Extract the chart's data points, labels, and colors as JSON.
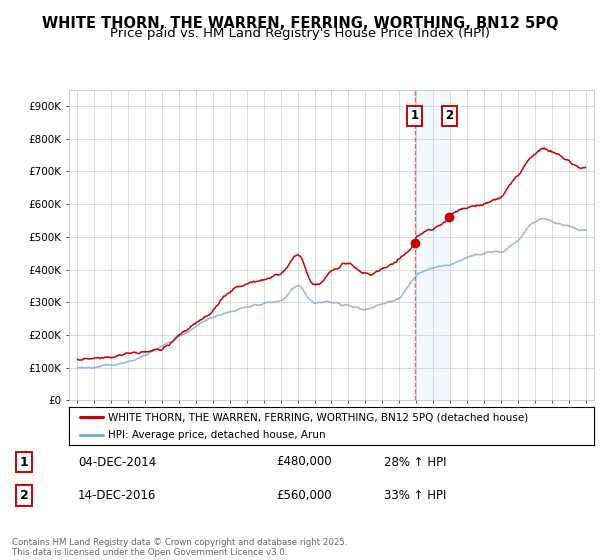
{
  "title": "WHITE THORN, THE WARREN, FERRING, WORTHING, BN12 5PQ",
  "subtitle": "Price paid vs. HM Land Registry's House Price Index (HPI)",
  "title_fontsize": 10.5,
  "subtitle_fontsize": 9.5,
  "ylim": [
    0,
    950000
  ],
  "yticks": [
    0,
    100000,
    200000,
    300000,
    400000,
    500000,
    600000,
    700000,
    800000,
    900000
  ],
  "ytick_labels": [
    "£0",
    "£100K",
    "£200K",
    "£300K",
    "£400K",
    "£500K",
    "£600K",
    "£700K",
    "£800K",
    "£900K"
  ],
  "sale1_date": 2014.92,
  "sale1_price": 480000,
  "sale2_date": 2016.95,
  "sale2_price": 560000,
  "sale_line_color": "#cc0000",
  "hpi_line_color": "#7aaddb",
  "shading_color": "#ddeeff",
  "background_color": "#ffffff",
  "grid_color": "#cccccc",
  "legend_label_red": "WHITE THORN, THE WARREN, FERRING, WORTHING, BN12 5PQ (detached house)",
  "legend_label_blue": "HPI: Average price, detached house, Arun",
  "table_row1": [
    "1",
    "04-DEC-2014",
    "£480,000",
    "28% ↑ HPI"
  ],
  "table_row2": [
    "2",
    "14-DEC-2016",
    "£560,000",
    "33% ↑ HPI"
  ],
  "footer": "Contains HM Land Registry data © Crown copyright and database right 2025.\nThis data is licensed under the Open Government Licence v3.0.",
  "xmin": 1994.5,
  "xmax": 2025.5
}
